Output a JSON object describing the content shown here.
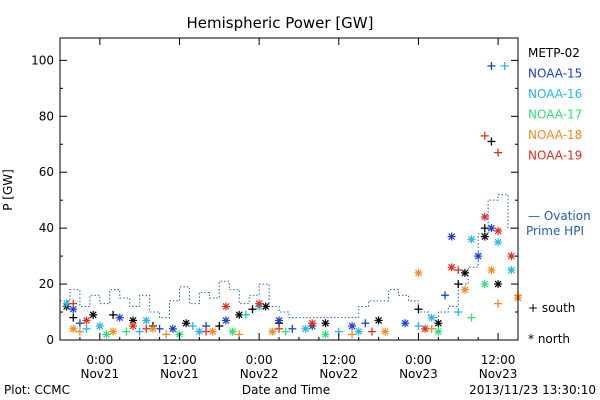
{
  "chart_data": {
    "type": "scatter",
    "title": "Hemispheric Power [GW]",
    "ylabel": "P [GW]",
    "xlabel": "Date and Time",
    "ylim": [
      0,
      108
    ],
    "yticks": [
      0,
      20,
      40,
      60,
      80,
      100
    ],
    "xticks": [
      {
        "time": "0:00",
        "date": "Nov21",
        "hours": 6
      },
      {
        "time": "12:00",
        "date": "Nov21",
        "hours": 18
      },
      {
        "time": "0:00",
        "date": "Nov22",
        "hours": 30
      },
      {
        "time": "12:00",
        "date": "Nov22",
        "hours": 42
      },
      {
        "time": "0:00",
        "date": "Nov23",
        "hours": 54
      },
      {
        "time": "12:00",
        "date": "Nov23",
        "hours": 66
      }
    ],
    "xlim_hours": [
      0,
      69
    ],
    "footer_left": "Plot: CCMC",
    "footer_right": "2013/11/23 13:30:10",
    "legend_ovation_line1": "— Ovation",
    "legend_ovation_line2": "Prime HPI",
    "legend_south": "+ south",
    "legend_north": "* north",
    "ovation": {
      "name": "Ovation Prime HPI",
      "color": "#1f5fbf",
      "hours": [
        0,
        1.5,
        3,
        4.5,
        6,
        7.5,
        9,
        10.5,
        12,
        13.5,
        15,
        16.5,
        18,
        19.5,
        21,
        22.5,
        24,
        25.5,
        27,
        28.5,
        30,
        31.5,
        33,
        34.5,
        36,
        37.5,
        39,
        40.5,
        42,
        43.5,
        45,
        46.5,
        48,
        49.5,
        51,
        52.5,
        54,
        55.5,
        57,
        58.5,
        60,
        61.5,
        63,
        64.5,
        66,
        67.5
      ],
      "values": [
        14,
        18,
        12,
        16,
        13,
        18,
        15,
        12,
        16,
        10,
        8,
        14,
        19,
        13,
        17,
        15,
        21,
        18,
        13,
        16,
        20,
        12,
        10,
        8,
        8,
        8,
        8,
        8,
        8,
        8,
        12,
        14,
        14,
        18,
        16,
        14,
        10,
        8,
        10,
        12,
        20,
        26,
        38,
        50,
        52,
        40
      ]
    },
    "series": [
      {
        "name": "METP-02",
        "color": "#000000",
        "south": [
          [
            2,
            8
          ],
          [
            8,
            9
          ],
          [
            14,
            5
          ],
          [
            24,
            5
          ],
          [
            29,
            11
          ],
          [
            33,
            6
          ],
          [
            54,
            11
          ],
          [
            60,
            20
          ],
          [
            64,
            40
          ],
          [
            65,
            71
          ]
        ],
        "north": [
          [
            1,
            12
          ],
          [
            5,
            9
          ],
          [
            11,
            7
          ],
          [
            19,
            6
          ],
          [
            27,
            9
          ],
          [
            31,
            12
          ],
          [
            40,
            6
          ],
          [
            48,
            7
          ],
          [
            57,
            6
          ],
          [
            61,
            24
          ],
          [
            64,
            37
          ],
          [
            66,
            20
          ]
        ]
      },
      {
        "name": "NOAA-15",
        "color": "#1a3fcf",
        "south": [
          [
            3,
            6
          ],
          [
            15,
            4
          ],
          [
            22,
            5
          ],
          [
            35,
            4
          ],
          [
            46,
            6
          ],
          [
            58,
            16
          ],
          [
            65,
            98
          ]
        ],
        "north": [
          [
            2,
            11
          ],
          [
            9,
            8
          ],
          [
            17,
            4
          ],
          [
            25,
            7
          ],
          [
            33,
            7
          ],
          [
            38,
            5
          ],
          [
            44,
            5
          ],
          [
            52,
            6
          ],
          [
            59,
            37
          ],
          [
            63,
            30
          ],
          [
            65,
            40
          ]
        ]
      },
      {
        "name": "NOAA-16",
        "color": "#21b9e6",
        "south": [
          [
            4,
            4
          ],
          [
            12,
            3
          ],
          [
            20,
            5
          ],
          [
            28,
            9
          ],
          [
            42,
            3
          ],
          [
            54,
            5
          ],
          [
            60,
            10
          ],
          [
            67,
            98
          ]
        ],
        "north": [
          [
            1,
            13
          ],
          [
            6,
            5
          ],
          [
            13,
            7
          ],
          [
            21,
            3
          ],
          [
            30,
            12
          ],
          [
            37,
            4
          ],
          [
            45,
            3
          ],
          [
            56,
            8
          ],
          [
            62,
            36
          ],
          [
            66,
            35
          ],
          [
            68,
            25
          ]
        ]
      },
      {
        "name": "NOAA-17",
        "color": "#2fe07a",
        "south": [
          [
            10,
            3
          ],
          [
            34,
            3
          ],
          [
            62,
            8
          ]
        ],
        "north": [
          [
            7,
            2
          ],
          [
            18,
            2
          ],
          [
            26,
            3
          ],
          [
            40,
            2
          ],
          [
            57,
            3
          ],
          [
            64,
            20
          ]
        ]
      },
      {
        "name": "NOAA-18",
        "color": "#f28c1e",
        "south": [
          [
            3,
            3
          ],
          [
            16,
            2
          ],
          [
            27,
            2
          ],
          [
            44,
            2
          ],
          [
            56,
            4
          ],
          [
            66,
            13
          ],
          [
            69,
            16
          ]
        ],
        "north": [
          [
            2,
            4
          ],
          [
            8,
            3
          ],
          [
            14,
            4
          ],
          [
            23,
            3
          ],
          [
            32,
            3
          ],
          [
            49,
            3
          ],
          [
            54,
            24
          ],
          [
            61,
            18
          ],
          [
            65,
            25
          ],
          [
            69,
            15
          ]
        ]
      },
      {
        "name": "NOAA-19",
        "color": "#e0301e",
        "south": [
          [
            2,
            13
          ],
          [
            13,
            4
          ],
          [
            22,
            3
          ],
          [
            33,
            4
          ],
          [
            47,
            3
          ],
          [
            60,
            25
          ],
          [
            64,
            73
          ],
          [
            66,
            67
          ]
        ],
        "north": [
          [
            4,
            7
          ],
          [
            11,
            5
          ],
          [
            25,
            12
          ],
          [
            30,
            13
          ],
          [
            38,
            6
          ],
          [
            55,
            4
          ],
          [
            59,
            26
          ],
          [
            64,
            44
          ],
          [
            66,
            39
          ],
          [
            68,
            30
          ]
        ]
      }
    ]
  }
}
